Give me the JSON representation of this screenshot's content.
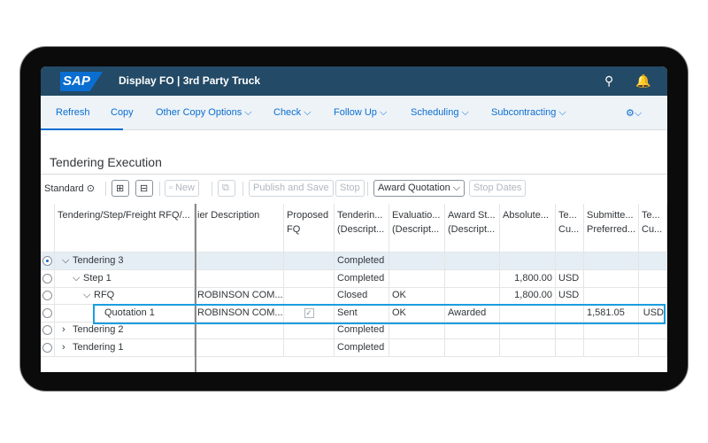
{
  "shell": {
    "logo": "SAP",
    "title": "Display FO | 3rd Party Truck"
  },
  "toolbar": [
    "Refresh",
    "Copy",
    "Other Copy Options ⌵",
    "Check ⌵",
    "Follow Up ⌵",
    "Scheduling ⌵",
    "Subcontracting ⌵",
    "⚙⌵"
  ],
  "section_title": "Tendering Execution",
  "actions": {
    "variant": "Standard ⊙",
    "new": "New",
    "publish": "Publish and Save",
    "stop": "Stop",
    "award": "Award Quotation ⌵",
    "stop_dates": "Stop Dates"
  },
  "columns": [
    [
      "Tendering/Step/Freight RFQ/...",
      ""
    ],
    [
      "ier Description",
      ""
    ],
    [
      "Proposed",
      "FQ"
    ],
    [
      "Tenderin...",
      "(Descript..."
    ],
    [
      "Evaluatio...",
      "(Descript..."
    ],
    [
      "Award St...",
      "(Descript..."
    ],
    [
      "Absolute...",
      ""
    ],
    [
      "Te...",
      "Cu..."
    ],
    [
      "Submitte...",
      "Preferred..."
    ],
    [
      "Te...",
      "Cu..."
    ]
  ],
  "rows": [
    {
      "name": "Tendering 3",
      "expander": "⌵",
      "indent": 0,
      "selected": true,
      "cells": [
        "",
        "",
        "Completed",
        "",
        "",
        "",
        "",
        "",
        ""
      ]
    },
    {
      "name": "Step 1",
      "expander": "⌵",
      "indent": 1,
      "selected": false,
      "cells": [
        "",
        "",
        "Completed",
        "",
        "",
        "1,800.00",
        "USD",
        "",
        ""
      ]
    },
    {
      "name": "RFQ",
      "expander": "⌵",
      "indent": 2,
      "selected": false,
      "cells": [
        "ROBINSON COM...",
        "",
        "Closed",
        "OK",
        "",
        "1,800.00",
        "USD",
        "",
        ""
      ]
    },
    {
      "name": "Quotation 1",
      "expander": "",
      "indent": 3,
      "selected": false,
      "proposed_checked": true,
      "cells": [
        "ROBINSON COM...",
        "",
        "Sent",
        "OK",
        "Awarded",
        "",
        "",
        "1,581.05",
        "USD"
      ]
    },
    {
      "name": "Tendering 2",
      "expander": "›",
      "indent": 0,
      "selected": false,
      "cells": [
        "",
        "",
        "Completed",
        "",
        "",
        "",
        "",
        "",
        ""
      ]
    },
    {
      "name": "Tendering 1",
      "expander": "›",
      "indent": 0,
      "selected": false,
      "cells": [
        "",
        "",
        "Completed",
        "",
        "",
        "",
        "",
        "",
        ""
      ]
    }
  ]
}
